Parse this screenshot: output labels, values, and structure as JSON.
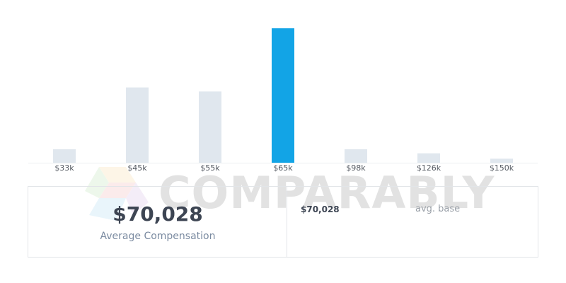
{
  "chart_data": {
    "type": "bar",
    "categories": [
      "$33k",
      "$45k",
      "$55k",
      "$65k",
      "$98k",
      "$126k",
      "$150k"
    ],
    "values": [
      10,
      56,
      53,
      100,
      10,
      7,
      3
    ],
    "highlight_index": 3,
    "ylim": [
      0,
      100
    ],
    "title": "",
    "xlabel": "",
    "ylabel": "",
    "grid": false,
    "colors": {
      "bar": "#e0e7ee",
      "highlight": "#12a4e6",
      "baseline": "#eceff2"
    }
  },
  "watermark": {
    "text": "COMPARABLY"
  },
  "summary": {
    "average_value": "$70,028",
    "average_label": "Average Compensation",
    "rows": [
      {
        "value": "$70,028",
        "label": "avg. base"
      }
    ]
  }
}
